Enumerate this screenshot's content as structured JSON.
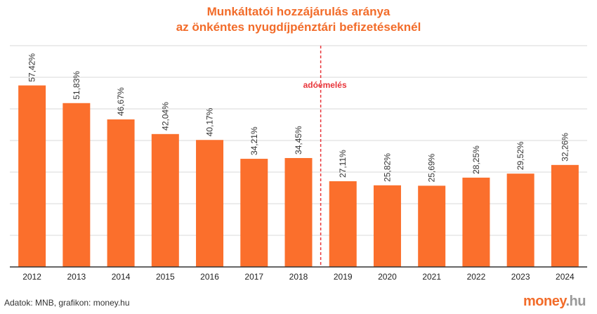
{
  "title_line1": "Munkáltatói hozzájárulás aránya",
  "title_line2": "az önkéntes nyugdíjpénztári befizetéseknél",
  "source": "Adatok: MNB, grafikon: money.hu",
  "logo_main": "money",
  "logo_suffix": ".hu",
  "colors": {
    "bar": "#fb6f2c",
    "title": "#f26c2a",
    "annotation": "#e8353a",
    "grid": "#d9d9d9"
  },
  "chart_data": {
    "type": "bar",
    "title": "Munkáltatói hozzájárulás aránya az önkéntes nyugdíjpénztári befizetéseknél",
    "categories": [
      "2012",
      "2013",
      "2014",
      "2015",
      "2016",
      "2017",
      "2018",
      "2019",
      "2020",
      "2021",
      "2022",
      "2023",
      "2024"
    ],
    "values": [
      57.42,
      51.83,
      46.67,
      42.04,
      40.17,
      34.21,
      34.45,
      27.11,
      25.82,
      25.69,
      28.25,
      29.52,
      32.26
    ],
    "data_labels": [
      "57,42%",
      "51,83%",
      "46,67%",
      "42,04%",
      "40,17%",
      "34,21%",
      "34,45%",
      "27,11%",
      "25,82%",
      "25,69%",
      "28,25%",
      "29,52%",
      "32,26%"
    ],
    "ylim": [
      0,
      70
    ],
    "grid": true,
    "xlabel": "",
    "ylabel": "",
    "annotation": {
      "text": "adóemelés",
      "between": [
        "2018",
        "2019"
      ]
    }
  }
}
